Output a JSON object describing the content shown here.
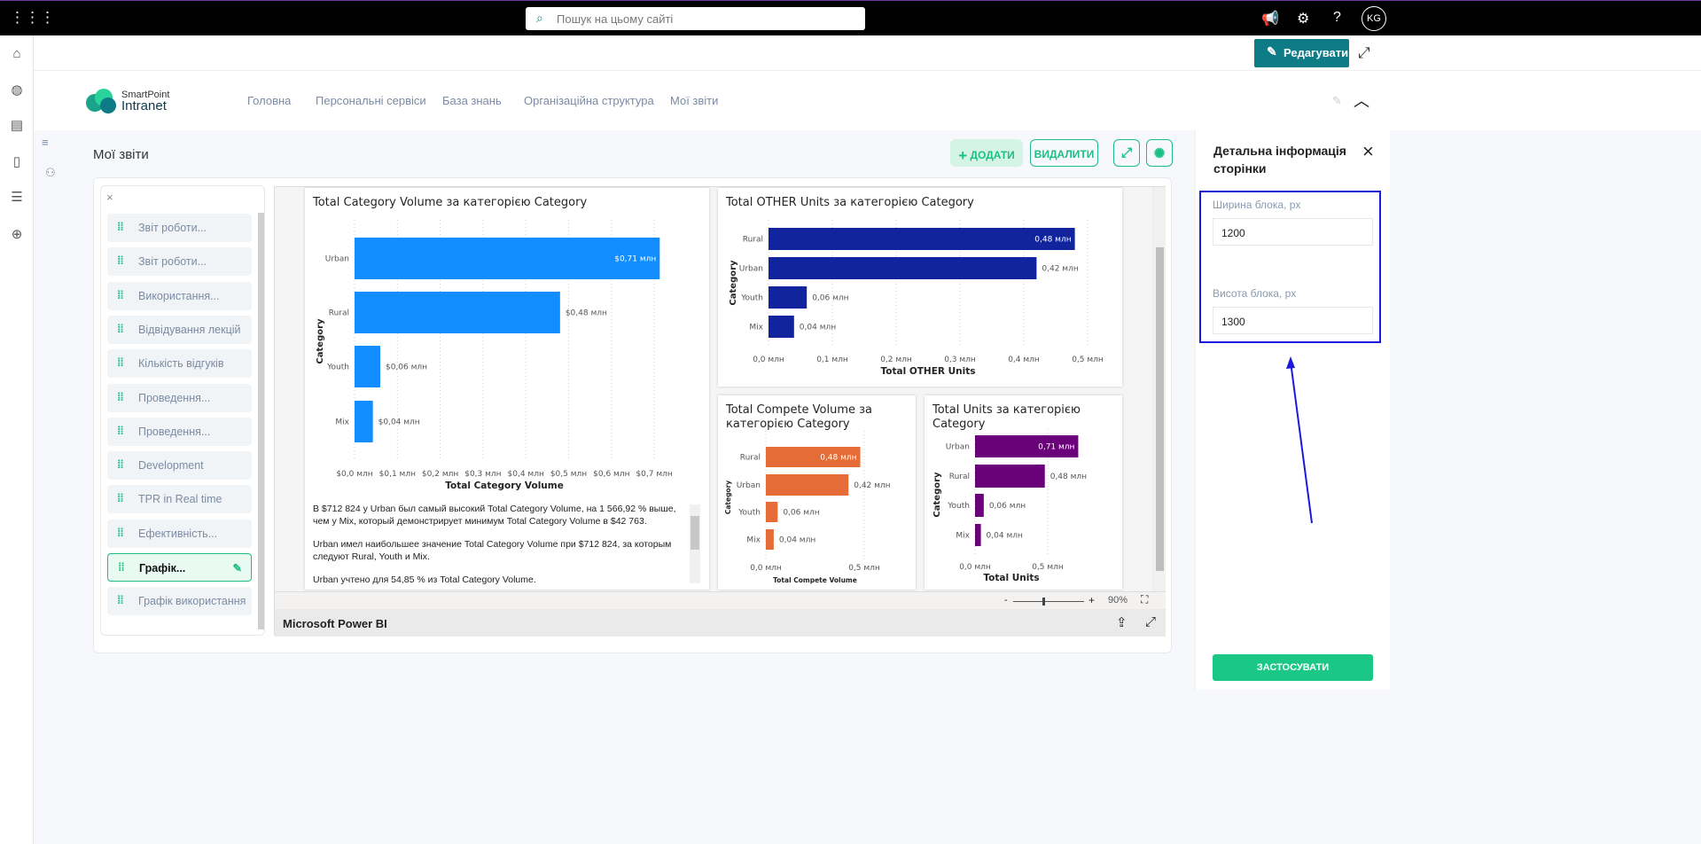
{
  "topbar": {
    "search_placeholder": "Пошук на цьому сайті",
    "avatar": "KG"
  },
  "editbar": {
    "edit_label": "Редагувати"
  },
  "header": {
    "logo_line1": "SmartPoint",
    "logo_line2": "Intranet",
    "nav": [
      "Головна",
      "Персональні сервіси",
      "База знань",
      "Організаційна структура",
      "Мої звіти"
    ]
  },
  "content": {
    "title": "Мої звіти",
    "add_label": "ДОДАТИ",
    "delete_label": "ВИДАЛИТИ"
  },
  "reports": [
    {
      "label": "Звіт роботи..."
    },
    {
      "label": "Звіт роботи..."
    },
    {
      "label": "Використання..."
    },
    {
      "label": "Відвідування лекцій"
    },
    {
      "label": "Кількість відгуків"
    },
    {
      "label": "Проведення..."
    },
    {
      "label": "Проведення..."
    },
    {
      "label": "Development"
    },
    {
      "label": "TPR in Real time"
    },
    {
      "label": "Ефективність..."
    },
    {
      "label": "Графік...",
      "active": true
    },
    {
      "label": "Графік використання"
    }
  ],
  "powerbi": {
    "footer": "Microsoft Power BI",
    "zoom": "90%",
    "zoom_minus": "-",
    "zoom_plus": "+",
    "narrative": [
      "В $712 824 у Urban был самый высокий Total Category Volume, на 1 566,92 % выше, чем у Mix, который демонстрирует минимум Total Category Volume в $42 763.",
      "Urban имел наибольшее значение Total Category Volume при $712 824, за которым следуют Rural, Youth и Mix.",
      "Urban учтено для 54,85 % из Total Category Volume."
    ]
  },
  "chart_data": [
    {
      "type": "bar",
      "orientation": "horizontal",
      "title": "Total Category Volume за категорією Category",
      "xlabel": "Total Category Volume",
      "ylabel": "Category",
      "categories": [
        "Urban",
        "Rural",
        "Youth",
        "Mix"
      ],
      "values": [
        0.712824,
        0.48,
        0.06,
        0.042763
      ],
      "data_labels": [
        "$0,71 млн",
        "$0,48 млн",
        "$0,06 млн",
        "$0,04 млн"
      ],
      "xlim": [
        0,
        0.75
      ],
      "ticks": [
        0,
        0.1,
        0.2,
        0.3,
        0.4,
        0.5,
        0.6,
        0.7
      ],
      "tick_labels": [
        "$0,0 млн",
        "$0,1 млн",
        "$0,2 млн",
        "$0,3 млн",
        "$0,4 млн",
        "$0,5 млн",
        "$0,6 млн",
        "$0,7 млн"
      ],
      "color": "#118DFF",
      "grid": true
    },
    {
      "type": "bar",
      "orientation": "horizontal",
      "title": "Total OTHER Units за категорією Category",
      "xlabel": "Total OTHER Units",
      "ylabel": "Category",
      "categories": [
        "Rural",
        "Urban",
        "Youth",
        "Mix"
      ],
      "values": [
        0.48,
        0.42,
        0.06,
        0.04
      ],
      "data_labels": [
        "0,48 млн",
        "0,42 млн",
        "0,06 млн",
        "0,04 млн"
      ],
      "xlim": [
        0,
        0.52
      ],
      "ticks": [
        0,
        0.1,
        0.2,
        0.3,
        0.4,
        0.5
      ],
      "tick_labels": [
        "0,0 млн",
        "0,1 млн",
        "0,2 млн",
        "0,3 млн",
        "0,4 млн",
        "0,5 млн"
      ],
      "color": "#12239E",
      "grid": true
    },
    {
      "type": "bar",
      "orientation": "horizontal",
      "title": "Total Compete Volume за категорією Category",
      "xlabel": "Total Compete Volume",
      "ylabel": "Category",
      "categories": [
        "Rural",
        "Urban",
        "Youth",
        "Mix"
      ],
      "values": [
        0.48,
        0.42,
        0.06,
        0.04
      ],
      "data_labels": [
        "0,48 млн",
        "0,42 млн",
        "0,06 млн",
        "0,04 млн"
      ],
      "xlim": [
        0,
        0.55
      ],
      "ticks": [
        0,
        0.5
      ],
      "tick_labels": [
        "0,0 млн",
        "0,5 млн"
      ],
      "color": "#E66C37",
      "grid": true
    },
    {
      "type": "bar",
      "orientation": "horizontal",
      "title": "Total Units за категорією Category",
      "xlabel": "Total Units",
      "ylabel": "Category",
      "categories": [
        "Urban",
        "Rural",
        "Youth",
        "Mix"
      ],
      "values": [
        0.71,
        0.48,
        0.06,
        0.04
      ],
      "data_labels": [
        "0,71 млн",
        "0,48 млн",
        "0,06 млн",
        "0,04 млн"
      ],
      "xlim": [
        0,
        0.75
      ],
      "ticks": [
        0,
        0.5
      ],
      "tick_labels": [
        "0,0 млн",
        "0,5 млн"
      ],
      "color": "#6B007B",
      "grid": true
    }
  ],
  "rpanel": {
    "title": "Детальна інформація сторінки",
    "width_label": "Ширина блока, px",
    "width_value": "1200",
    "height_label": "Висота блока, px",
    "height_value": "1300",
    "apply_label": "ЗАСТОСУВАТИ",
    "highlight_color": "#1a1adc"
  }
}
